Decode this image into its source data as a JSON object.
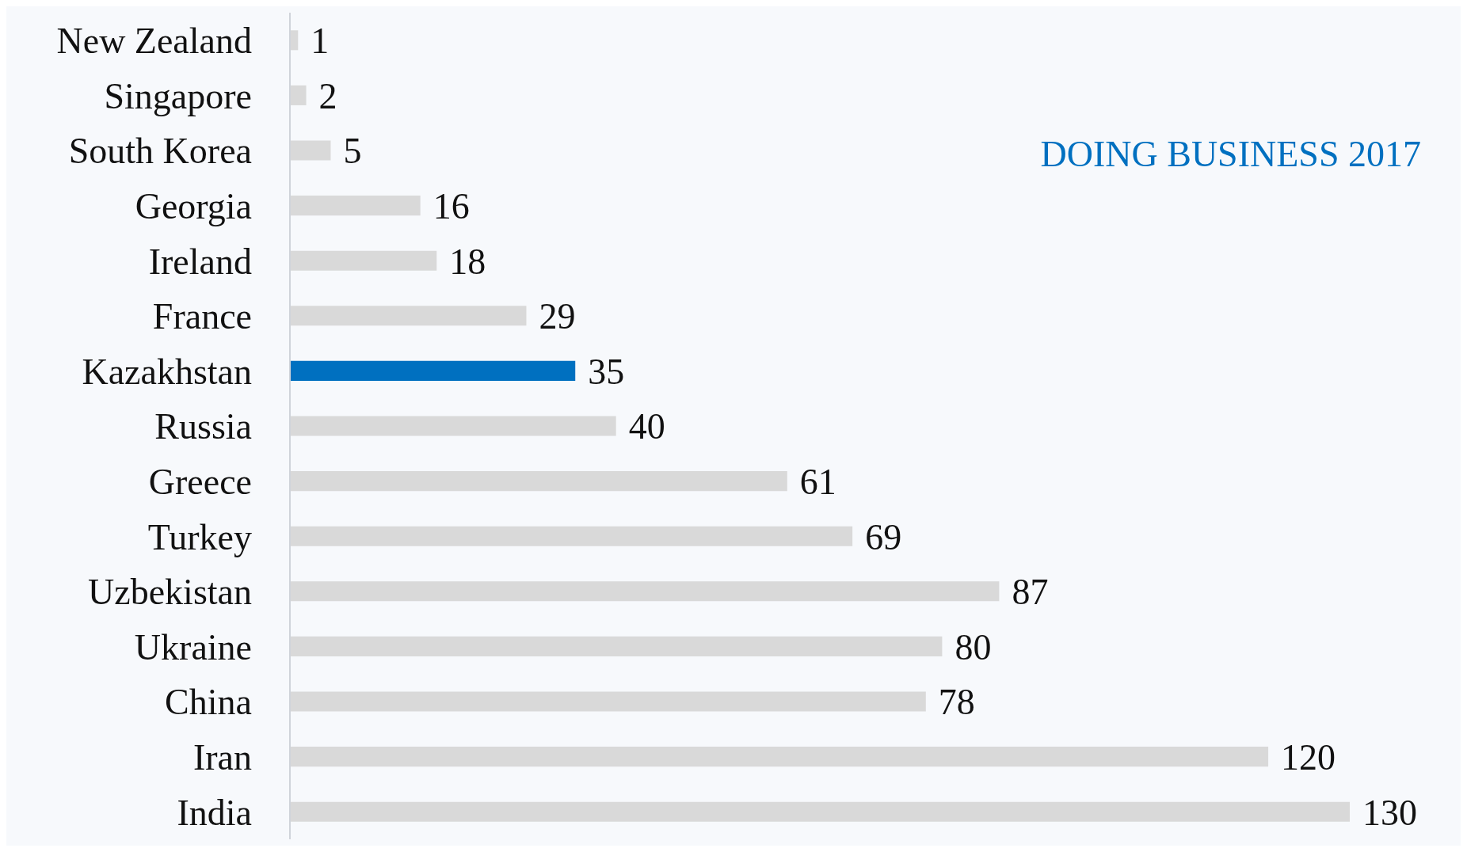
{
  "chart_data": {
    "type": "bar",
    "orientation": "horizontal",
    "title": "DOING BUSINESS 2017",
    "categories": [
      "New Zealand",
      "Singapore",
      "South Korea",
      "Georgia",
      "Ireland",
      "France",
      "Kazakhstan",
      "Russia",
      "Greece",
      "Turkey",
      "Uzbekistan",
      "Ukraine",
      "China",
      "Iran",
      "India"
    ],
    "values": [
      1,
      2,
      5,
      16,
      18,
      29,
      35,
      40,
      61,
      69,
      87,
      80,
      78,
      120,
      130
    ],
    "colors": [
      "#d9d9d9",
      "#d9d9d9",
      "#d9d9d9",
      "#d9d9d9",
      "#d9d9d9",
      "#d9d9d9",
      "#0070c0",
      "#d9d9d9",
      "#d9d9d9",
      "#d9d9d9",
      "#d9d9d9",
      "#d9d9d9",
      "#d9d9d9",
      "#d9d9d9",
      "#d9d9d9"
    ],
    "data_labels": true,
    "tick_labels": "y"
  }
}
